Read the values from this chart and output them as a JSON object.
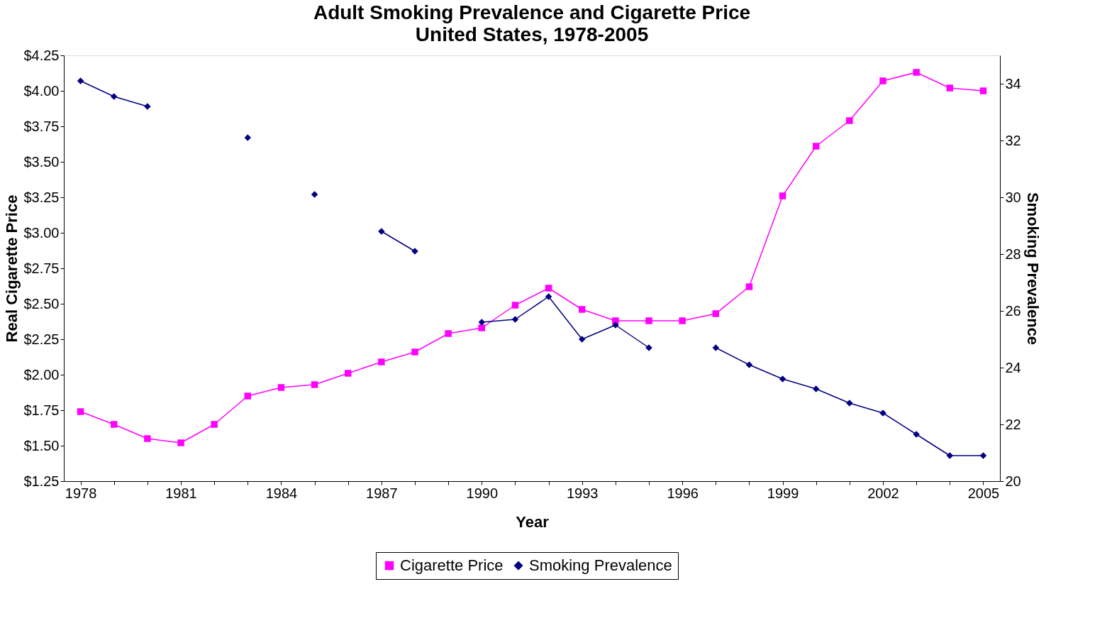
{
  "chart_data": {
    "type": "line",
    "title": "Adult Smoking Prevalence and Cigarette Price",
    "subtitle": "United States, 1978-2005",
    "xlabel": "Year",
    "ylabel": "Real Cigarette Price",
    "y2label": "Smoking Prevalence",
    "categories": [
      "1978",
      null,
      null,
      "1981",
      null,
      null,
      "1984",
      null,
      null,
      "1987",
      null,
      null,
      "1990",
      null,
      null,
      "1993",
      null,
      null,
      "1996",
      null,
      null,
      "1999",
      null,
      null,
      "2002",
      null,
      null,
      "2005"
    ],
    "series": [
      {
        "name": "Cigarette Price",
        "color": "#ff00ff",
        "marker": "square",
        "values": [
          1.74,
          1.65,
          1.55,
          1.52,
          1.65,
          1.85,
          1.91,
          1.93,
          2.01,
          2.09,
          2.16,
          2.29,
          2.33,
          2.49,
          2.61,
          2.46,
          2.38,
          2.38,
          2.38,
          2.43,
          2.62,
          3.26,
          3.61,
          3.79,
          4.07,
          4.13,
          4.02,
          4.0
        ]
      },
      {
        "name": "Smoking Prevalence",
        "color": "#000080",
        "marker": "diamond",
        "axis": "y2",
        "values": [
          34.1,
          33.55,
          33.2,
          null,
          null,
          32.1,
          null,
          30.1,
          null,
          28.8,
          28.1,
          null,
          25.6,
          25.7,
          26.5,
          25.0,
          25.5,
          24.7,
          null,
          24.7,
          24.1,
          23.6,
          23.25,
          22.75,
          22.4,
          21.65,
          20.9,
          20.9
        ]
      }
    ],
    "ylim": [
      1.25,
      4.25
    ],
    "yticks": [
      {
        "value": 1.25,
        "label": "$1.25"
      },
      {
        "value": 1.5,
        "label": "$1.50"
      },
      {
        "value": 1.75,
        "label": "$1.75"
      },
      {
        "value": 2,
        "label": "$2.00"
      },
      {
        "value": 2.25,
        "label": "$2.25"
      },
      {
        "value": 2.5,
        "label": "$2.50"
      },
      {
        "value": 2.75,
        "label": "$2.75"
      },
      {
        "value": 3,
        "label": "$3.00"
      },
      {
        "value": 3.25,
        "label": "$3.25"
      },
      {
        "value": 3.5,
        "label": "$3.50"
      },
      {
        "value": 3.75,
        "label": "$3.75"
      },
      {
        "value": 4,
        "label": "$4.00"
      },
      {
        "value": 4.25,
        "label": "$4.25"
      }
    ],
    "y2lim": [
      20,
      35
    ],
    "y2ticks": [
      20,
      22,
      24,
      26,
      28,
      30,
      32,
      34
    ],
    "grid": false,
    "legend": "bottom",
    "line_style": "solid"
  }
}
